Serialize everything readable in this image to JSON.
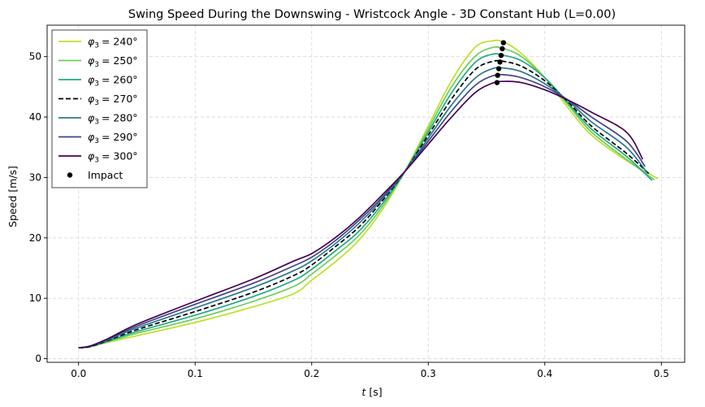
{
  "chart_data": {
    "type": "line",
    "title": "Swing Speed During the Downswing - Wristcock Angle - 3D Constant Hub (L=0.00)",
    "xlabel": "t [s]",
    "xlabel_var": "t",
    "xlabel_unit": "[s]",
    "ylabel": "Speed [m/s]",
    "xlim": [
      -0.027,
      0.52
    ],
    "ylim": [
      -0.6,
      55.2
    ],
    "xticks": [
      0.0,
      0.1,
      0.2,
      0.3,
      0.4,
      0.5
    ],
    "xtick_labels": [
      "0.0",
      "0.1",
      "0.2",
      "0.3",
      "0.4",
      "0.5"
    ],
    "yticks": [
      0,
      10,
      20,
      30,
      40,
      50
    ],
    "ytick_labels": [
      "0",
      "10",
      "20",
      "30",
      "40",
      "50"
    ],
    "grid": true,
    "legend_position": "top-left",
    "legend_var": "φ",
    "legend_sub": "3",
    "series": [
      {
        "name": "φ3 = 240°",
        "label_value": "240°",
        "color": "#bddf26",
        "dash": "solid",
        "points": [
          [
            0.0,
            1.8
          ],
          [
            0.01,
            2.0
          ],
          [
            0.025,
            2.7
          ],
          [
            0.05,
            3.8
          ],
          [
            0.1,
            6.0
          ],
          [
            0.15,
            8.6
          ],
          [
            0.185,
            10.8
          ],
          [
            0.2,
            13.0
          ],
          [
            0.22,
            16.0
          ],
          [
            0.24,
            19.5
          ],
          [
            0.26,
            24.5
          ],
          [
            0.28,
            31.0
          ],
          [
            0.3,
            38.5
          ],
          [
            0.32,
            46.0
          ],
          [
            0.34,
            51.5
          ],
          [
            0.355,
            52.6
          ],
          [
            0.365,
            52.4
          ],
          [
            0.38,
            50.5
          ],
          [
            0.4,
            46.5
          ],
          [
            0.42,
            41.5
          ],
          [
            0.44,
            37.0
          ],
          [
            0.47,
            32.8
          ],
          [
            0.497,
            29.8
          ]
        ],
        "impact": [
          0.3645,
          52.3
        ]
      },
      {
        "name": "φ3 = 250°",
        "label_value": "250°",
        "color": "#6ccd5a",
        "dash": "solid",
        "points": [
          [
            0.0,
            1.8
          ],
          [
            0.01,
            2.0
          ],
          [
            0.025,
            2.8
          ],
          [
            0.05,
            4.2
          ],
          [
            0.1,
            6.6
          ],
          [
            0.15,
            9.5
          ],
          [
            0.185,
            12.0
          ],
          [
            0.2,
            14.0
          ],
          [
            0.22,
            17.0
          ],
          [
            0.24,
            20.3
          ],
          [
            0.26,
            25.0
          ],
          [
            0.28,
            31.0
          ],
          [
            0.3,
            38.0
          ],
          [
            0.32,
            45.0
          ],
          [
            0.34,
            50.0
          ],
          [
            0.355,
            51.5
          ],
          [
            0.365,
            51.3
          ],
          [
            0.38,
            50.0
          ],
          [
            0.4,
            46.5
          ],
          [
            0.42,
            42.0
          ],
          [
            0.44,
            37.5
          ],
          [
            0.47,
            33.0
          ],
          [
            0.494,
            29.6
          ]
        ],
        "impact": [
          0.3635,
          51.3
        ]
      },
      {
        "name": "φ3 = 260°",
        "label_value": "260°",
        "color": "#22a884",
        "dash": "solid",
        "points": [
          [
            0.0,
            1.8
          ],
          [
            0.01,
            2.0
          ],
          [
            0.025,
            2.9
          ],
          [
            0.05,
            4.5
          ],
          [
            0.1,
            7.2
          ],
          [
            0.15,
            10.3
          ],
          [
            0.185,
            13.0
          ],
          [
            0.2,
            14.8
          ],
          [
            0.22,
            17.8
          ],
          [
            0.24,
            21.0
          ],
          [
            0.26,
            25.5
          ],
          [
            0.28,
            31.0
          ],
          [
            0.3,
            37.5
          ],
          [
            0.32,
            44.0
          ],
          [
            0.34,
            49.0
          ],
          [
            0.355,
            50.4
          ],
          [
            0.365,
            50.2
          ],
          [
            0.38,
            49.3
          ],
          [
            0.4,
            46.5
          ],
          [
            0.42,
            42.3
          ],
          [
            0.44,
            38.0
          ],
          [
            0.47,
            33.5
          ],
          [
            0.492,
            29.5
          ]
        ],
        "impact": [
          0.3625,
          50.2
        ]
      },
      {
        "name": "φ3 = 270°",
        "label_value": "270°",
        "color": "#000000",
        "dash": "dashed",
        "points": [
          [
            0.0,
            1.8
          ],
          [
            0.01,
            2.0
          ],
          [
            0.025,
            3.0
          ],
          [
            0.05,
            4.8
          ],
          [
            0.1,
            7.8
          ],
          [
            0.15,
            11.0
          ],
          [
            0.185,
            13.8
          ],
          [
            0.2,
            15.5
          ],
          [
            0.22,
            18.5
          ],
          [
            0.24,
            21.7
          ],
          [
            0.26,
            26.0
          ],
          [
            0.28,
            31.0
          ],
          [
            0.3,
            37.0
          ],
          [
            0.32,
            43.0
          ],
          [
            0.34,
            47.8
          ],
          [
            0.355,
            49.2
          ],
          [
            0.365,
            49.2
          ],
          [
            0.38,
            48.4
          ],
          [
            0.4,
            46.0
          ],
          [
            0.42,
            42.5
          ],
          [
            0.44,
            38.5
          ],
          [
            0.47,
            34.0
          ],
          [
            0.49,
            30.5
          ]
        ],
        "impact": [
          0.3615,
          49.1
        ]
      },
      {
        "name": "φ3 = 280°",
        "label_value": "280°",
        "color": "#2a788e",
        "dash": "solid",
        "points": [
          [
            0.0,
            1.8
          ],
          [
            0.01,
            2.1
          ],
          [
            0.025,
            3.1
          ],
          [
            0.05,
            5.1
          ],
          [
            0.1,
            8.4
          ],
          [
            0.15,
            11.8
          ],
          [
            0.185,
            14.6
          ],
          [
            0.2,
            16.2
          ],
          [
            0.22,
            19.0
          ],
          [
            0.24,
            22.3
          ],
          [
            0.26,
            26.3
          ],
          [
            0.28,
            31.0
          ],
          [
            0.3,
            36.5
          ],
          [
            0.32,
            42.0
          ],
          [
            0.34,
            46.4
          ],
          [
            0.355,
            48.0
          ],
          [
            0.365,
            48.1
          ],
          [
            0.38,
            47.5
          ],
          [
            0.4,
            45.5
          ],
          [
            0.42,
            42.7
          ],
          [
            0.44,
            39.2
          ],
          [
            0.47,
            35.0
          ],
          [
            0.488,
            30.7
          ]
        ],
        "impact": [
          0.3605,
          48.0
        ]
      },
      {
        "name": "φ3 = 290°",
        "label_value": "290°",
        "color": "#414487",
        "dash": "solid",
        "points": [
          [
            0.0,
            1.8
          ],
          [
            0.01,
            2.1
          ],
          [
            0.025,
            3.2
          ],
          [
            0.05,
            5.4
          ],
          [
            0.1,
            9.0
          ],
          [
            0.15,
            12.5
          ],
          [
            0.185,
            15.4
          ],
          [
            0.2,
            16.8
          ],
          [
            0.22,
            19.5
          ],
          [
            0.24,
            22.8
          ],
          [
            0.26,
            26.6
          ],
          [
            0.28,
            31.0
          ],
          [
            0.3,
            36.0
          ],
          [
            0.32,
            41.0
          ],
          [
            0.34,
            45.2
          ],
          [
            0.355,
            46.8
          ],
          [
            0.365,
            47.0
          ],
          [
            0.38,
            46.5
          ],
          [
            0.4,
            45.0
          ],
          [
            0.42,
            42.8
          ],
          [
            0.44,
            40.0
          ],
          [
            0.47,
            36.0
          ],
          [
            0.486,
            31.8
          ]
        ],
        "impact": [
          0.3595,
          46.9
        ]
      },
      {
        "name": "φ3 = 300°",
        "label_value": "300°",
        "color": "#440154",
        "dash": "solid",
        "points": [
          [
            0.0,
            1.8
          ],
          [
            0.01,
            2.1
          ],
          [
            0.025,
            3.3
          ],
          [
            0.05,
            5.7
          ],
          [
            0.1,
            9.5
          ],
          [
            0.15,
            13.2
          ],
          [
            0.185,
            16.2
          ],
          [
            0.2,
            17.4
          ],
          [
            0.22,
            20.0
          ],
          [
            0.24,
            23.2
          ],
          [
            0.26,
            27.0
          ],
          [
            0.28,
            31.0
          ],
          [
            0.3,
            35.5
          ],
          [
            0.32,
            40.0
          ],
          [
            0.34,
            44.0
          ],
          [
            0.355,
            45.6
          ],
          [
            0.365,
            45.9
          ],
          [
            0.38,
            45.7
          ],
          [
            0.4,
            44.5
          ],
          [
            0.42,
            42.8
          ],
          [
            0.44,
            40.8
          ],
          [
            0.47,
            37.5
          ],
          [
            0.484,
            33.0
          ]
        ],
        "impact": [
          0.359,
          45.7
        ]
      }
    ],
    "impact_label": "Impact",
    "impact_color": "#000000"
  }
}
